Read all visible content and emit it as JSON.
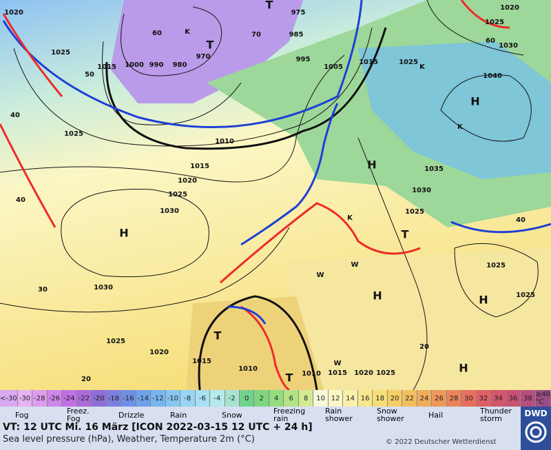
{
  "header": {
    "valid_time": "VT: 12 UTC Mi.  16 März [ICON 2022-03-15  12 UTC + 24 h]",
    "subtitle": "Sea level pressure (hPa), Weather, Temperature 2m (°C)",
    "copyright": "© 2022 Deutscher Wetterdienst",
    "logo": "DWD"
  },
  "temperature_scale": {
    "labels": [
      "<-30",
      "-30",
      "-28",
      "-26",
      "-24",
      "-22",
      "-20",
      "-18",
      "-16",
      "-14",
      "-12",
      "-10",
      "-8",
      "-6",
      "-4",
      "-2",
      "0",
      "2",
      "4",
      "6",
      "8",
      "10",
      "12",
      "14",
      "16",
      "18",
      "20",
      "22",
      "24",
      "26",
      "28",
      "30",
      "32",
      "34",
      "36",
      "38",
      "≥40 °C"
    ],
    "colors": [
      "#d9a8f0",
      "#e7b3f3",
      "#dd9cef",
      "#cf86ea",
      "#c070e2",
      "#a96bd9",
      "#8f6ed8",
      "#7d7ee0",
      "#6f8fe6",
      "#6ea2ec",
      "#78b5f0",
      "#86c6f3",
      "#98d4f4",
      "#a9e0f2",
      "#b6e9ec",
      "#a6e4d0",
      "#6fd28d",
      "#7ed680",
      "#95dc7e",
      "#b4e386",
      "#d3ea92",
      "#f6f8d8",
      "#fbf6c4",
      "#f9f0aa",
      "#f8e88f",
      "#f7de78",
      "#f5cf65",
      "#f2bf5e",
      "#f0ac5a",
      "#ee985a",
      "#eb845c",
      "#e6705d",
      "#df6063",
      "#d5556a",
      "#c85274",
      "#b54f7e",
      "#9c4c86"
    ]
  },
  "legend": [
    [
      "Fog"
    ],
    [
      "Freez.",
      "Fog"
    ],
    [
      "Drizzle"
    ],
    [
      "Rain"
    ],
    [
      "Snow"
    ],
    [
      "Freezing",
      "rain"
    ],
    [
      "Rain",
      "shower"
    ],
    [
      "Snow",
      "shower"
    ],
    [
      "Hail"
    ],
    [
      "Thunder",
      "storm"
    ]
  ],
  "map_labels": [
    "1020",
    "1025",
    "1015",
    "1000",
    "990",
    "980",
    "970",
    "975",
    "985",
    "995",
    "1005",
    "1015",
    "1025",
    "1020",
    "1025",
    "1030",
    "1040",
    "H",
    "K",
    "1025",
    "1010",
    "1015",
    "1020",
    "1025",
    "1030",
    "H",
    "1030",
    "1025",
    "1020",
    "1015",
    "1010",
    "1010",
    "1015",
    "1020",
    "1025",
    "H",
    "1035",
    "1030",
    "1025",
    "K",
    "T",
    "1025",
    "H",
    "1025",
    "H",
    "T",
    "H",
    "T",
    "40",
    "40",
    "30",
    "20",
    "20",
    "50",
    "60",
    "70",
    "60",
    "40",
    "T",
    "K",
    "T",
    "K",
    "W",
    "W",
    "W"
  ]
}
